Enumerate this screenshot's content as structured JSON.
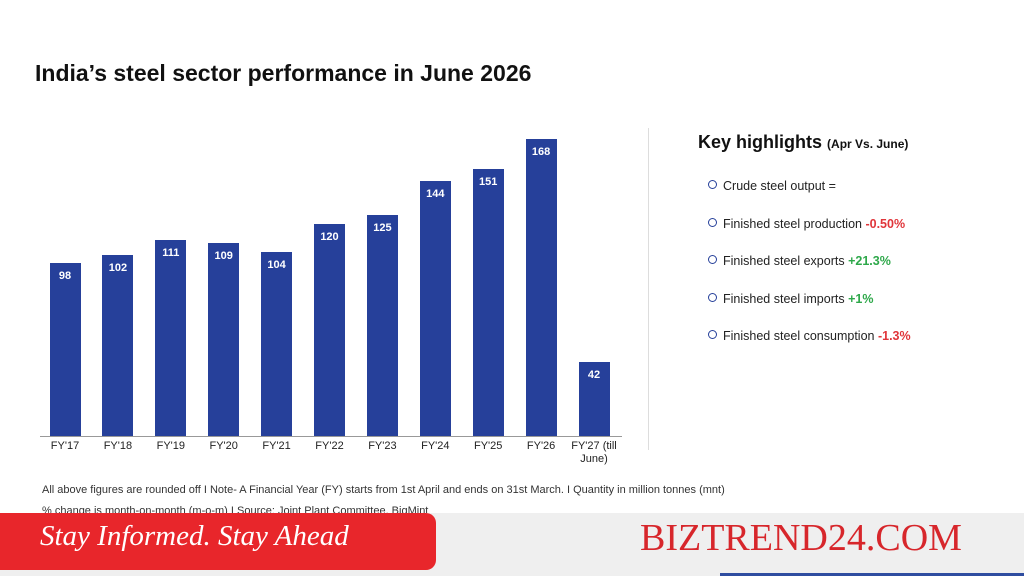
{
  "title": "India’s steel sector performance in June 2026",
  "chart_data": {
    "type": "bar",
    "categories": [
      "FY'17",
      "FY'18",
      "FY'19",
      "FY'20",
      "FY'21",
      "FY'22",
      "FY'23",
      "FY'24",
      "FY'25",
      "FY'26",
      "FY'27 (till June)"
    ],
    "values": [
      98,
      102,
      111,
      109,
      104,
      120,
      125,
      144,
      151,
      168,
      42
    ],
    "color": "#26409a"
  },
  "highlights": {
    "title": "Key highlights",
    "subtitle": "(Apr Vs. June)",
    "items": [
      {
        "label": "Crude steel output ="
      },
      {
        "label": "Finished steel production",
        "change": "-0.50%",
        "color": "#e0353a"
      },
      {
        "label": "Finished steel exports",
        "change": "+21.3%",
        "color": "#2ea84a"
      },
      {
        "label": "Finished steel imports",
        "change": "+1%",
        "color": "#2ea84a"
      },
      {
        "label": "Finished steel consumption",
        "change": "-1.3%",
        "color": "#e0353a"
      }
    ]
  },
  "footnotes": [
    "All above figures are rounded off  I  Note- A Financial Year (FY) starts from 1st April and ends on 31st March.  I  Quantity in million tonnes (mnt)",
    "% change is month-on-month (m-o-m)  I  Source: Joint Plant Committee, BigMint"
  ],
  "banner": {
    "tagline": "Stay Informed. Stay Ahead",
    "brand": "BIZTREND24.COM"
  }
}
